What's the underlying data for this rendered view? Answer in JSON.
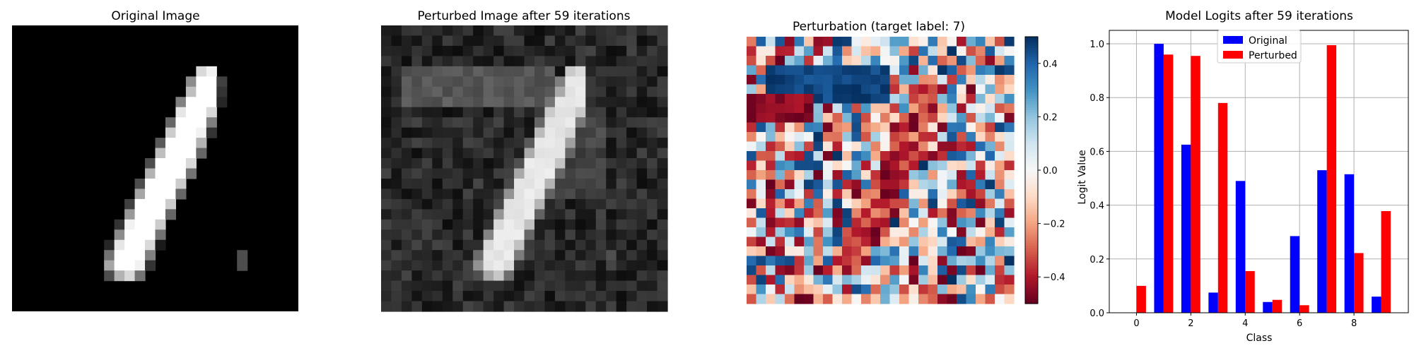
{
  "chart_data": [
    {
      "type": "heatmap",
      "title": "Original Image",
      "colormap": "gray",
      "axes": "off",
      "grid_size": [
        28,
        28
      ],
      "values": [
        [
          0,
          0,
          0,
          0,
          0,
          0,
          0,
          0,
          0,
          0,
          0,
          0,
          0,
          0,
          0,
          0,
          0,
          0,
          0,
          0,
          0,
          0,
          0,
          0,
          0,
          0,
          0,
          0
        ],
        [
          0,
          0,
          0,
          0,
          0,
          0,
          0,
          0,
          0,
          0,
          0,
          0,
          0,
          0,
          0,
          0,
          0,
          0,
          0,
          0,
          0,
          0,
          0,
          0,
          0,
          0,
          0,
          0
        ],
        [
          0,
          0,
          0,
          0,
          0,
          0,
          0,
          0,
          0,
          0,
          0,
          0,
          0,
          0,
          0,
          0,
          0,
          0,
          0,
          0,
          0,
          0,
          0,
          0,
          0,
          0,
          0,
          0
        ],
        [
          0,
          0,
          0,
          0,
          0,
          0,
          0,
          0,
          0,
          0,
          0,
          0,
          0,
          0,
          0,
          0,
          0,
          0,
          0,
          0,
          0,
          0,
          0,
          0,
          0,
          0,
          0,
          0
        ],
        [
          0,
          0,
          0,
          0,
          0,
          0,
          0,
          0,
          0,
          0,
          0,
          0,
          0,
          0,
          0,
          0,
          0,
          0,
          0.85,
          0.95,
          0,
          0,
          0,
          0,
          0,
          0,
          0,
          0
        ],
        [
          0,
          0,
          0,
          0,
          0,
          0,
          0,
          0,
          0,
          0,
          0,
          0,
          0,
          0,
          0,
          0,
          0,
          0.55,
          1,
          1,
          0.25,
          0,
          0,
          0,
          0,
          0,
          0,
          0
        ],
        [
          0,
          0,
          0,
          0,
          0,
          0,
          0,
          0,
          0,
          0,
          0,
          0,
          0,
          0,
          0,
          0,
          0,
          0.75,
          1,
          1,
          0.2,
          0,
          0,
          0,
          0,
          0,
          0,
          0
        ],
        [
          0,
          0,
          0,
          0,
          0,
          0,
          0,
          0,
          0,
          0,
          0,
          0,
          0,
          0,
          0,
          0,
          0.5,
          1,
          1,
          1,
          0.15,
          0,
          0,
          0,
          0,
          0,
          0,
          0
        ],
        [
          0,
          0,
          0,
          0,
          0,
          0,
          0,
          0,
          0,
          0,
          0,
          0,
          0,
          0,
          0,
          0,
          0.9,
          1,
          1,
          0.85,
          0,
          0,
          0,
          0,
          0,
          0,
          0,
          0
        ],
        [
          0,
          0,
          0,
          0,
          0,
          0,
          0,
          0,
          0,
          0,
          0,
          0,
          0,
          0,
          0,
          0.4,
          1,
          1,
          1,
          0.5,
          0,
          0,
          0,
          0,
          0,
          0,
          0,
          0
        ],
        [
          0,
          0,
          0,
          0,
          0,
          0,
          0,
          0,
          0,
          0,
          0,
          0,
          0,
          0,
          0,
          0.8,
          1,
          1,
          0.95,
          0.2,
          0,
          0,
          0,
          0,
          0,
          0,
          0,
          0
        ],
        [
          0,
          0,
          0,
          0,
          0,
          0,
          0,
          0,
          0,
          0,
          0,
          0,
          0,
          0,
          0.35,
          1,
          1,
          1,
          0.7,
          0,
          0,
          0,
          0,
          0,
          0,
          0,
          0,
          0
        ],
        [
          0,
          0,
          0,
          0,
          0,
          0,
          0,
          0,
          0,
          0,
          0,
          0,
          0,
          0,
          0.75,
          1,
          1,
          1,
          0.4,
          0,
          0,
          0,
          0,
          0,
          0,
          0,
          0,
          0
        ],
        [
          0,
          0,
          0,
          0,
          0,
          0,
          0,
          0,
          0,
          0,
          0,
          0,
          0,
          0.3,
          1,
          1,
          1,
          0.85,
          0,
          0,
          0,
          0,
          0,
          0,
          0,
          0,
          0,
          0
        ],
        [
          0,
          0,
          0,
          0,
          0,
          0,
          0,
          0,
          0,
          0,
          0,
          0,
          0,
          0.7,
          1,
          1,
          1,
          0.45,
          0,
          0,
          0,
          0,
          0,
          0,
          0,
          0,
          0,
          0
        ],
        [
          0,
          0,
          0,
          0,
          0,
          0,
          0,
          0,
          0,
          0,
          0,
          0,
          0.3,
          1,
          1,
          1,
          0.8,
          0,
          0,
          0,
          0,
          0,
          0,
          0,
          0,
          0,
          0,
          0
        ],
        [
          0,
          0,
          0,
          0,
          0,
          0,
          0,
          0,
          0,
          0,
          0,
          0,
          0.65,
          1,
          1,
          1,
          0.4,
          0,
          0,
          0,
          0,
          0,
          0,
          0,
          0,
          0,
          0,
          0
        ],
        [
          0,
          0,
          0,
          0,
          0,
          0,
          0,
          0,
          0,
          0,
          0,
          0.25,
          1,
          1,
          1,
          0.8,
          0,
          0,
          0,
          0,
          0,
          0,
          0,
          0,
          0,
          0,
          0,
          0
        ],
        [
          0,
          0,
          0,
          0,
          0,
          0,
          0,
          0,
          0,
          0,
          0,
          0.6,
          1,
          1,
          1,
          0.4,
          0,
          0,
          0,
          0,
          0,
          0,
          0,
          0,
          0,
          0,
          0,
          0
        ],
        [
          0,
          0,
          0,
          0,
          0,
          0,
          0,
          0,
          0,
          0,
          0.2,
          0.95,
          1,
          1,
          0.8,
          0,
          0,
          0,
          0,
          0,
          0,
          0,
          0,
          0,
          0,
          0,
          0,
          0
        ],
        [
          0,
          0,
          0,
          0,
          0,
          0,
          0,
          0,
          0,
          0,
          0.55,
          1,
          1,
          1,
          0.45,
          0,
          0,
          0,
          0,
          0,
          0,
          0,
          0,
          0,
          0,
          0,
          0,
          0
        ],
        [
          0,
          0,
          0,
          0,
          0,
          0,
          0,
          0,
          0,
          0.15,
          0.9,
          1,
          1,
          0.85,
          0.1,
          0,
          0,
          0,
          0,
          0,
          0,
          0,
          0,
          0,
          0,
          0,
          0,
          0
        ],
        [
          0,
          0,
          0,
          0,
          0,
          0,
          0,
          0,
          0,
          0.45,
          1,
          1,
          1,
          0.5,
          0,
          0,
          0,
          0,
          0,
          0,
          0,
          0,
          0.3,
          0,
          0,
          0,
          0,
          0
        ],
        [
          0,
          0,
          0,
          0,
          0,
          0,
          0,
          0,
          0,
          0.65,
          1,
          1,
          0.95,
          0.2,
          0,
          0,
          0,
          0,
          0,
          0,
          0,
          0,
          0.3,
          0,
          0,
          0,
          0,
          0
        ],
        [
          0,
          0,
          0,
          0,
          0,
          0,
          0,
          0,
          0,
          0.3,
          0.7,
          0.85,
          0.45,
          0,
          0,
          0,
          0,
          0,
          0,
          0,
          0,
          0,
          0,
          0,
          0,
          0,
          0,
          0
        ],
        [
          0,
          0,
          0,
          0,
          0,
          0,
          0,
          0,
          0,
          0,
          0,
          0,
          0,
          0,
          0,
          0,
          0,
          0,
          0,
          0,
          0,
          0,
          0,
          0,
          0,
          0,
          0,
          0
        ],
        [
          0,
          0,
          0,
          0,
          0,
          0,
          0,
          0,
          0,
          0,
          0,
          0,
          0,
          0,
          0,
          0,
          0,
          0,
          0,
          0,
          0,
          0,
          0,
          0,
          0,
          0,
          0,
          0
        ],
        [
          0,
          0,
          0,
          0,
          0,
          0,
          0,
          0,
          0,
          0,
          0,
          0,
          0,
          0,
          0,
          0,
          0,
          0,
          0,
          0,
          0,
          0,
          0,
          0,
          0,
          0,
          0,
          0
        ]
      ]
    },
    {
      "type": "heatmap",
      "title": "Perturbed Image after 59 iterations",
      "colormap": "gray",
      "axes": "off",
      "grid_size": [
        28,
        28
      ],
      "note": "grayscale image of the digit 1 with added low-intensity noise; a faint horizontal bar (shape of a 7) appears in the upper part"
    },
    {
      "type": "heatmap",
      "title": "Perturbation (target label: 7)",
      "colormap": "RdBu",
      "axes": "off",
      "grid_size": [
        28,
        28
      ],
      "colorbar": {
        "range": [
          -0.5,
          0.5
        ],
        "ticks": [
          -0.4,
          -0.2,
          0.0,
          0.2,
          0.4
        ],
        "tick_labels": [
          "−0.4",
          "−0.2",
          "0.0",
          "0.2",
          "0.4"
        ]
      }
    },
    {
      "type": "bar",
      "title": "Model Logits after 59 iterations",
      "xlabel": "Class",
      "ylabel": "Logit Value",
      "categories": [
        0,
        1,
        2,
        3,
        4,
        5,
        6,
        7,
        8,
        9
      ],
      "x_ticks": [
        "0",
        "2",
        "4",
        "6",
        "8"
      ],
      "y_ticks": [
        "0.0",
        "0.2",
        "0.4",
        "0.6",
        "0.8",
        "1.0"
      ],
      "ylim": [
        0,
        1.05
      ],
      "xlim": [
        -1.0,
        10.0
      ],
      "grid": true,
      "legend_position": "upper-center",
      "series": [
        {
          "name": "Original",
          "color": "#0000ff",
          "values": [
            0.0,
            1.0,
            0.625,
            0.075,
            0.49,
            0.04,
            0.285,
            0.53,
            0.515,
            0.06
          ]
        },
        {
          "name": "Perturbed",
          "color": "#ff0000",
          "values": [
            0.1,
            0.96,
            0.955,
            0.78,
            0.155,
            0.048,
            0.028,
            0.995,
            0.222,
            0.378
          ]
        }
      ]
    }
  ]
}
